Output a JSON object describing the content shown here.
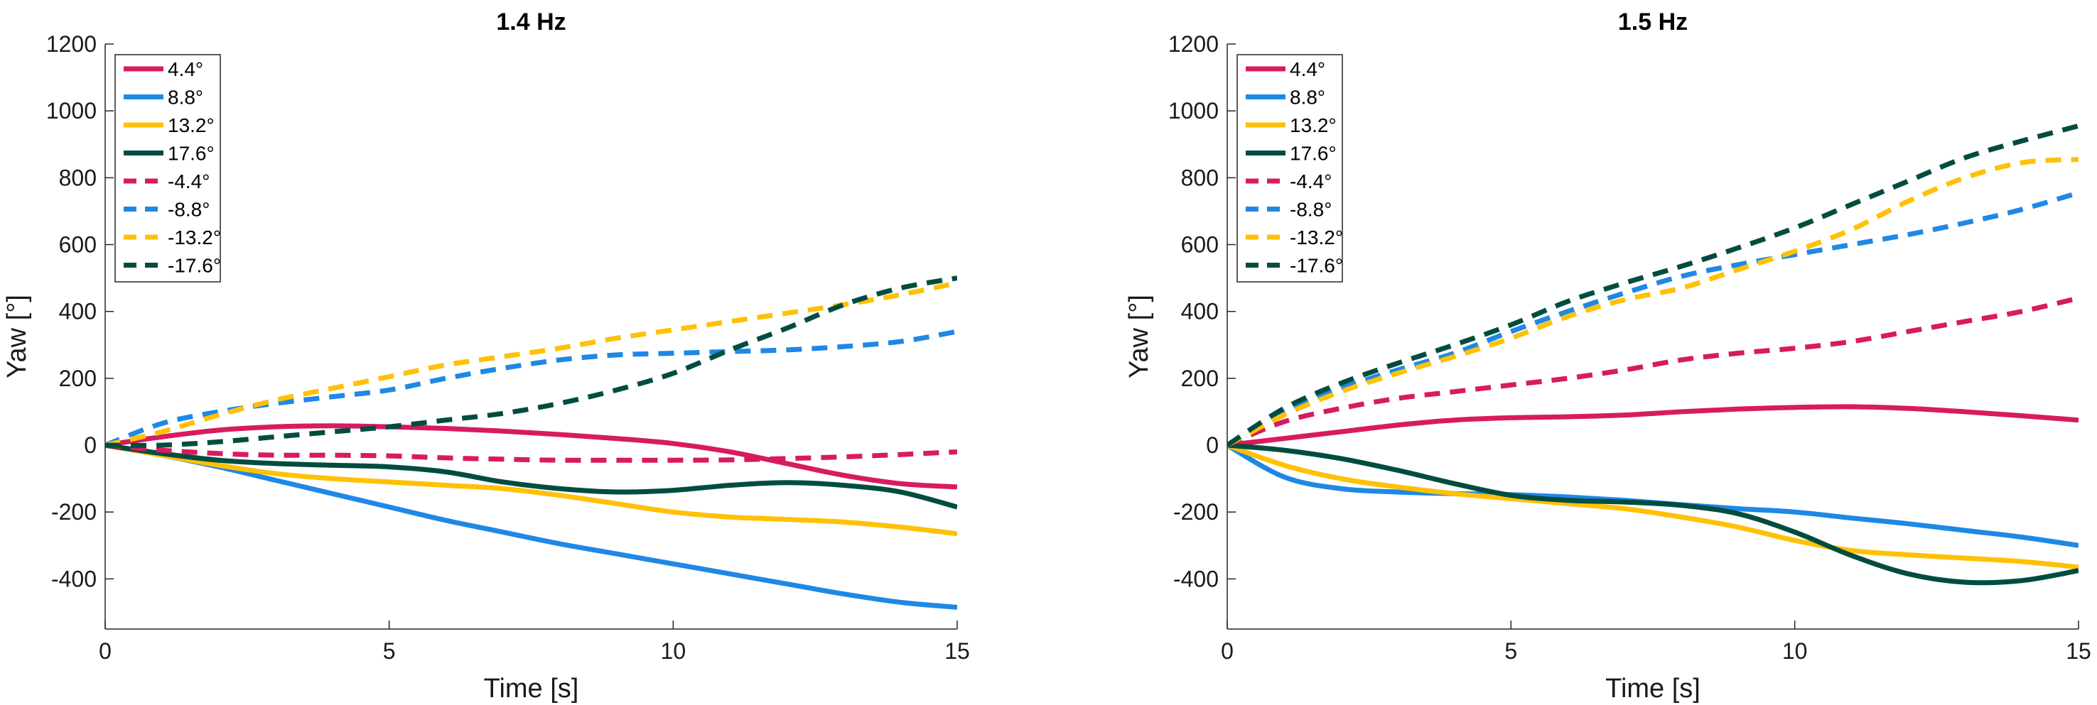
{
  "chart_data": [
    {
      "type": "line",
      "title": "1.4 Hz",
      "xlabel": "Time [s]",
      "ylabel": "Yaw [°]",
      "xlim": [
        0,
        15
      ],
      "ylim": [
        -550,
        1200
      ],
      "xticks": [
        0,
        5,
        10,
        15
      ],
      "yticks": [
        -400,
        -200,
        0,
        200,
        400,
        600,
        800,
        1000,
        1200
      ],
      "xtick_labels": [
        "0",
        "5",
        "10",
        "15"
      ],
      "ytick_labels": [
        "-400",
        "-200",
        "0",
        "200",
        "400",
        "600",
        "800",
        "1000",
        "1200"
      ],
      "legend_position": "top-left",
      "x": [
        0,
        1,
        2,
        3,
        4,
        5,
        6,
        7,
        8,
        9,
        10,
        11,
        12,
        13,
        14,
        15
      ],
      "series": [
        {
          "name": "4.4°",
          "color": "#d81b60",
          "dash": "solid",
          "values": [
            0,
            25,
            45,
            55,
            58,
            55,
            50,
            42,
            32,
            20,
            5,
            -20,
            -55,
            -90,
            -115,
            -125
          ]
        },
        {
          "name": "8.8°",
          "color": "#1e88e5",
          "dash": "solid",
          "values": [
            0,
            -30,
            -65,
            -105,
            -145,
            -185,
            -225,
            -260,
            -295,
            -325,
            -355,
            -385,
            -415,
            -445,
            -470,
            -485
          ]
        },
        {
          "name": "13.2°",
          "color": "#ffc107",
          "dash": "solid",
          "values": [
            0,
            -30,
            -60,
            -85,
            -100,
            -110,
            -120,
            -130,
            -150,
            -175,
            -200,
            -215,
            -222,
            -230,
            -245,
            -265
          ]
        },
        {
          "name": "17.6°",
          "color": "#004d40",
          "dash": "solid",
          "values": [
            0,
            -25,
            -45,
            -55,
            -60,
            -65,
            -80,
            -110,
            -130,
            -140,
            -135,
            -120,
            -112,
            -120,
            -140,
            -185
          ]
        },
        {
          "name": "-4.4°",
          "color": "#d81b60",
          "dash": "dashed",
          "values": [
            0,
            -15,
            -25,
            -30,
            -30,
            -32,
            -38,
            -42,
            -45,
            -45,
            -45,
            -44,
            -40,
            -35,
            -28,
            -20
          ]
        },
        {
          "name": "-8.8°",
          "color": "#1e88e5",
          "dash": "dashed",
          "values": [
            0,
            65,
            100,
            125,
            145,
            165,
            200,
            230,
            255,
            270,
            275,
            280,
            285,
            295,
            310,
            340
          ]
        },
        {
          "name": "-13.2°",
          "color": "#ffc107",
          "dash": "dashed",
          "values": [
            0,
            40,
            90,
            135,
            170,
            205,
            240,
            265,
            290,
            320,
            345,
            370,
            395,
            420,
            450,
            485
          ]
        },
        {
          "name": "-17.6°",
          "color": "#004d40",
          "dash": "dashed",
          "values": [
            0,
            0,
            10,
            25,
            40,
            55,
            75,
            95,
            125,
            165,
            215,
            285,
            350,
            420,
            470,
            500
          ]
        }
      ]
    },
    {
      "type": "line",
      "title": "1.5 Hz",
      "xlabel": "Time [s]",
      "ylabel": "Yaw [°]",
      "xlim": [
        0,
        15
      ],
      "ylim": [
        -550,
        1200
      ],
      "xticks": [
        0,
        5,
        10,
        15
      ],
      "yticks": [
        -400,
        -200,
        0,
        200,
        400,
        600,
        800,
        1000,
        1200
      ],
      "xtick_labels": [
        "0",
        "5",
        "10",
        "15"
      ],
      "ytick_labels": [
        "-400",
        "-200",
        "0",
        "200",
        "400",
        "600",
        "800",
        "1000",
        "1200"
      ],
      "legend_position": "top-left",
      "x": [
        0,
        1,
        2,
        3,
        4,
        5,
        6,
        7,
        8,
        9,
        10,
        11,
        12,
        13,
        14,
        15
      ],
      "series": [
        {
          "name": "4.4°",
          "color": "#d81b60",
          "dash": "solid",
          "values": [
            0,
            20,
            40,
            60,
            75,
            82,
            85,
            90,
            100,
            108,
            113,
            115,
            110,
            100,
            88,
            75
          ]
        },
        {
          "name": "8.8°",
          "color": "#1e88e5",
          "dash": "solid",
          "values": [
            0,
            -95,
            -130,
            -140,
            -145,
            -148,
            -155,
            -165,
            -178,
            -190,
            -200,
            -218,
            -235,
            -255,
            -275,
            -300
          ]
        },
        {
          "name": "13.2°",
          "color": "#ffc107",
          "dash": "solid",
          "values": [
            0,
            -60,
            -100,
            -125,
            -145,
            -160,
            -175,
            -190,
            -215,
            -245,
            -285,
            -315,
            -328,
            -338,
            -348,
            -365
          ]
        },
        {
          "name": "17.6°",
          "color": "#004d40",
          "dash": "solid",
          "values": [
            0,
            -15,
            -40,
            -75,
            -115,
            -150,
            -165,
            -170,
            -180,
            -205,
            -260,
            -330,
            -385,
            -410,
            -405,
            -375
          ]
        },
        {
          "name": "-4.4°",
          "color": "#d81b60",
          "dash": "dashed",
          "values": [
            0,
            70,
            110,
            140,
            160,
            180,
            200,
            225,
            255,
            275,
            290,
            310,
            340,
            370,
            400,
            440
          ]
        },
        {
          "name": "-8.8°",
          "color": "#1e88e5",
          "dash": "dashed",
          "values": [
            0,
            100,
            170,
            225,
            275,
            340,
            400,
            455,
            505,
            540,
            570,
            600,
            630,
            665,
            705,
            755
          ]
        },
        {
          "name": "-13.2°",
          "color": "#ffc107",
          "dash": "dashed",
          "values": [
            0,
            90,
            160,
            215,
            265,
            320,
            385,
            435,
            470,
            525,
            580,
            645,
            730,
            800,
            845,
            855
          ]
        },
        {
          "name": "-17.6°",
          "color": "#004d40",
          "dash": "dashed",
          "values": [
            0,
            110,
            185,
            245,
            300,
            360,
            430,
            485,
            535,
            590,
            650,
            720,
            790,
            860,
            910,
            955
          ]
        }
      ]
    }
  ]
}
